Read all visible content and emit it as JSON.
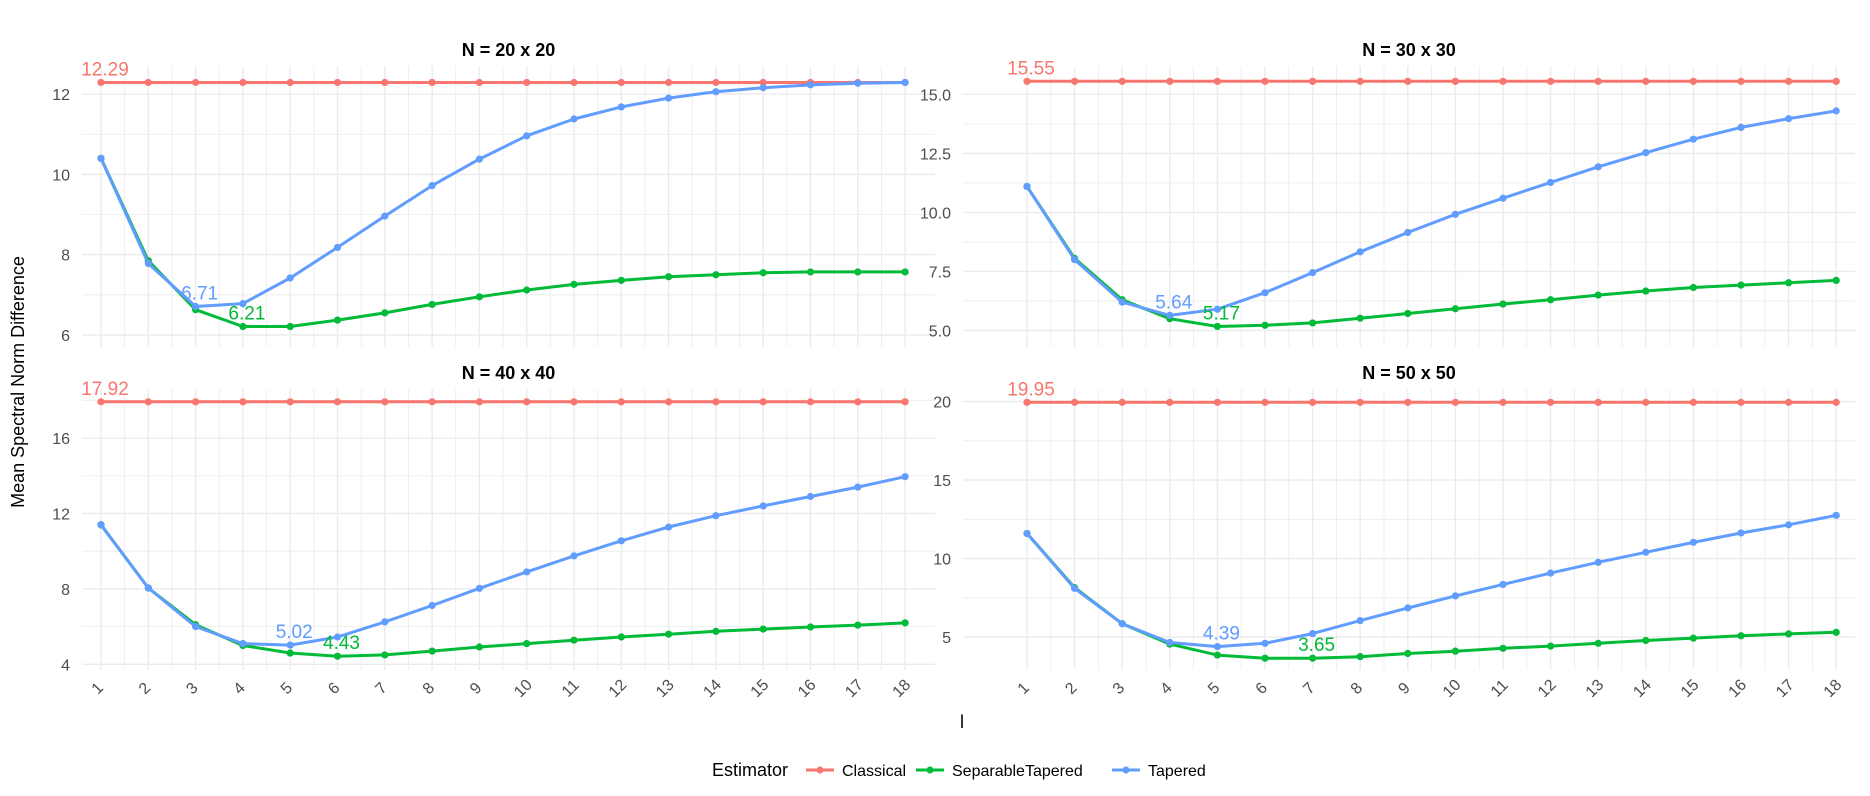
{
  "figure": {
    "ylabel": "Mean Spectral Norm Difference",
    "xlabel": "l",
    "legend": {
      "title": "Estimator",
      "position": "bottom"
    }
  },
  "colors": {
    "Classical": "#F8766D",
    "SeparableTapered": "#00BA38",
    "Tapered": "#619CFF",
    "grid": "#EBEBEB",
    "axis_text": "#4D4D4D"
  },
  "chart_data": [
    {
      "type": "line",
      "title": "N = 20 x 20",
      "x": [
        1,
        2,
        3,
        4,
        5,
        6,
        7,
        8,
        9,
        10,
        11,
        12,
        13,
        14,
        15,
        16,
        17,
        18
      ],
      "ylim": [
        5.7,
        12.7
      ],
      "yticks": [
        6,
        8,
        10,
        12
      ],
      "yticklabels": [
        "6",
        "8",
        "10",
        "12"
      ],
      "grid": true,
      "series": [
        {
          "name": "Classical",
          "values": [
            12.29,
            12.29,
            12.29,
            12.29,
            12.29,
            12.29,
            12.29,
            12.29,
            12.29,
            12.29,
            12.29,
            12.29,
            12.29,
            12.29,
            12.29,
            12.29,
            12.29,
            12.29
          ]
        },
        {
          "name": "SeparableTapered",
          "values": [
            10.4,
            7.85,
            6.63,
            6.21,
            6.21,
            6.37,
            6.55,
            6.76,
            6.95,
            7.12,
            7.26,
            7.36,
            7.45,
            7.5,
            7.55,
            7.57,
            7.57,
            7.57
          ]
        },
        {
          "name": "Tapered",
          "values": [
            10.4,
            7.78,
            6.71,
            6.78,
            7.42,
            8.18,
            8.96,
            9.72,
            10.38,
            10.96,
            11.38,
            11.68,
            11.9,
            12.06,
            12.16,
            12.23,
            12.27,
            12.29
          ]
        }
      ],
      "annotations": [
        {
          "text": "12.29",
          "x": 1,
          "y": 12.29,
          "series": "Classical"
        },
        {
          "text": "6.71",
          "x": 3,
          "y": 6.71,
          "series": "Tapered"
        },
        {
          "text": "6.21",
          "x": 4,
          "y": 6.21,
          "series": "SeparableTapered"
        }
      ]
    },
    {
      "type": "line",
      "title": "N = 30 x 30",
      "x": [
        1,
        2,
        3,
        4,
        5,
        6,
        7,
        8,
        9,
        10,
        11,
        12,
        13,
        14,
        15,
        16,
        17,
        18
      ],
      "ylim": [
        4.3,
        16.2
      ],
      "yticks": [
        5,
        7.5,
        10,
        12.5,
        15
      ],
      "yticklabels": [
        "5.0",
        "7.5",
        "10.0",
        "12.5",
        "15.0"
      ],
      "grid": true,
      "series": [
        {
          "name": "Classical",
          "values": [
            15.55,
            15.55,
            15.55,
            15.55,
            15.55,
            15.55,
            15.55,
            15.55,
            15.55,
            15.55,
            15.55,
            15.55,
            15.55,
            15.55,
            15.55,
            15.55,
            15.55,
            15.55
          ]
        },
        {
          "name": "SeparableTapered",
          "values": [
            11.1,
            8.05,
            6.3,
            5.5,
            5.17,
            5.22,
            5.32,
            5.52,
            5.72,
            5.92,
            6.12,
            6.3,
            6.5,
            6.67,
            6.82,
            6.92,
            7.02,
            7.12
          ]
        },
        {
          "name": "Tapered",
          "values": [
            11.1,
            8.0,
            6.2,
            5.64,
            5.9,
            6.6,
            7.45,
            8.33,
            9.15,
            9.92,
            10.6,
            11.27,
            11.93,
            12.53,
            13.1,
            13.6,
            13.97,
            14.3
          ]
        }
      ],
      "annotations": [
        {
          "text": "15.55",
          "x": 1,
          "y": 15.55,
          "series": "Classical"
        },
        {
          "text": "5.64",
          "x": 4,
          "y": 5.64,
          "series": "Tapered"
        },
        {
          "text": "5.17",
          "x": 5,
          "y": 5.17,
          "series": "SeparableTapered"
        }
      ]
    },
    {
      "type": "line",
      "title": "N = 40 x 40",
      "x": [
        1,
        2,
        3,
        4,
        5,
        6,
        7,
        8,
        9,
        10,
        11,
        12,
        13,
        14,
        15,
        16,
        17,
        18
      ],
      "ylim": [
        3.7,
        18.6
      ],
      "yticks": [
        4,
        8,
        12,
        16
      ],
      "yticklabels": [
        "4",
        "8",
        "12",
        "16"
      ],
      "grid": true,
      "series": [
        {
          "name": "Classical",
          "values": [
            17.92,
            17.92,
            17.92,
            17.92,
            17.92,
            17.92,
            17.92,
            17.92,
            17.92,
            17.92,
            17.92,
            17.92,
            17.92,
            17.92,
            17.92,
            17.92,
            17.92,
            17.92
          ]
        },
        {
          "name": "SeparableTapered",
          "values": [
            11.4,
            8.05,
            6.1,
            5.0,
            4.6,
            4.43,
            4.5,
            4.7,
            4.92,
            5.1,
            5.28,
            5.45,
            5.6,
            5.75,
            5.87,
            5.98,
            6.08,
            6.2
          ]
        },
        {
          "name": "Tapered",
          "values": [
            11.4,
            8.05,
            6.0,
            5.1,
            5.02,
            5.45,
            6.25,
            7.12,
            8.03,
            8.9,
            9.75,
            10.55,
            11.28,
            11.88,
            12.4,
            12.9,
            13.4,
            13.95
          ]
        }
      ],
      "annotations": [
        {
          "text": "17.92",
          "x": 1,
          "y": 17.92,
          "series": "Classical"
        },
        {
          "text": "5.02",
          "x": 5,
          "y": 5.02,
          "series": "Tapered"
        },
        {
          "text": "4.43",
          "x": 6,
          "y": 4.43,
          "series": "SeparableTapered"
        }
      ]
    },
    {
      "type": "line",
      "title": "N = 50 x 50",
      "x": [
        1,
        2,
        3,
        4,
        5,
        6,
        7,
        8,
        9,
        10,
        11,
        12,
        13,
        14,
        15,
        16,
        17,
        18
      ],
      "ylim": [
        2.9,
        20.8
      ],
      "yticks": [
        5,
        10,
        15,
        20
      ],
      "yticklabels": [
        "5",
        "10",
        "15",
        "20"
      ],
      "grid": true,
      "series": [
        {
          "name": "Classical",
          "values": [
            19.95,
            19.95,
            19.95,
            19.95,
            19.95,
            19.95,
            19.95,
            19.95,
            19.95,
            19.95,
            19.95,
            19.95,
            19.95,
            19.95,
            19.95,
            19.95,
            19.95,
            19.95
          ]
        },
        {
          "name": "SeparableTapered",
          "values": [
            11.6,
            8.15,
            5.85,
            4.55,
            3.85,
            3.65,
            3.65,
            3.75,
            3.95,
            4.1,
            4.28,
            4.42,
            4.6,
            4.78,
            4.93,
            5.08,
            5.2,
            5.3
          ]
        },
        {
          "name": "Tapered",
          "values": [
            11.6,
            8.1,
            5.85,
            4.65,
            4.39,
            4.6,
            5.22,
            6.05,
            6.85,
            7.62,
            8.35,
            9.07,
            9.76,
            10.4,
            11.03,
            11.63,
            12.15,
            12.75
          ]
        }
      ],
      "annotations": [
        {
          "text": "19.95",
          "x": 1,
          "y": 19.95,
          "series": "Classical"
        },
        {
          "text": "4.39",
          "x": 5,
          "y": 4.39,
          "series": "Tapered"
        },
        {
          "text": "3.65",
          "x": 7,
          "y": 3.65,
          "series": "SeparableTapered"
        }
      ]
    }
  ]
}
